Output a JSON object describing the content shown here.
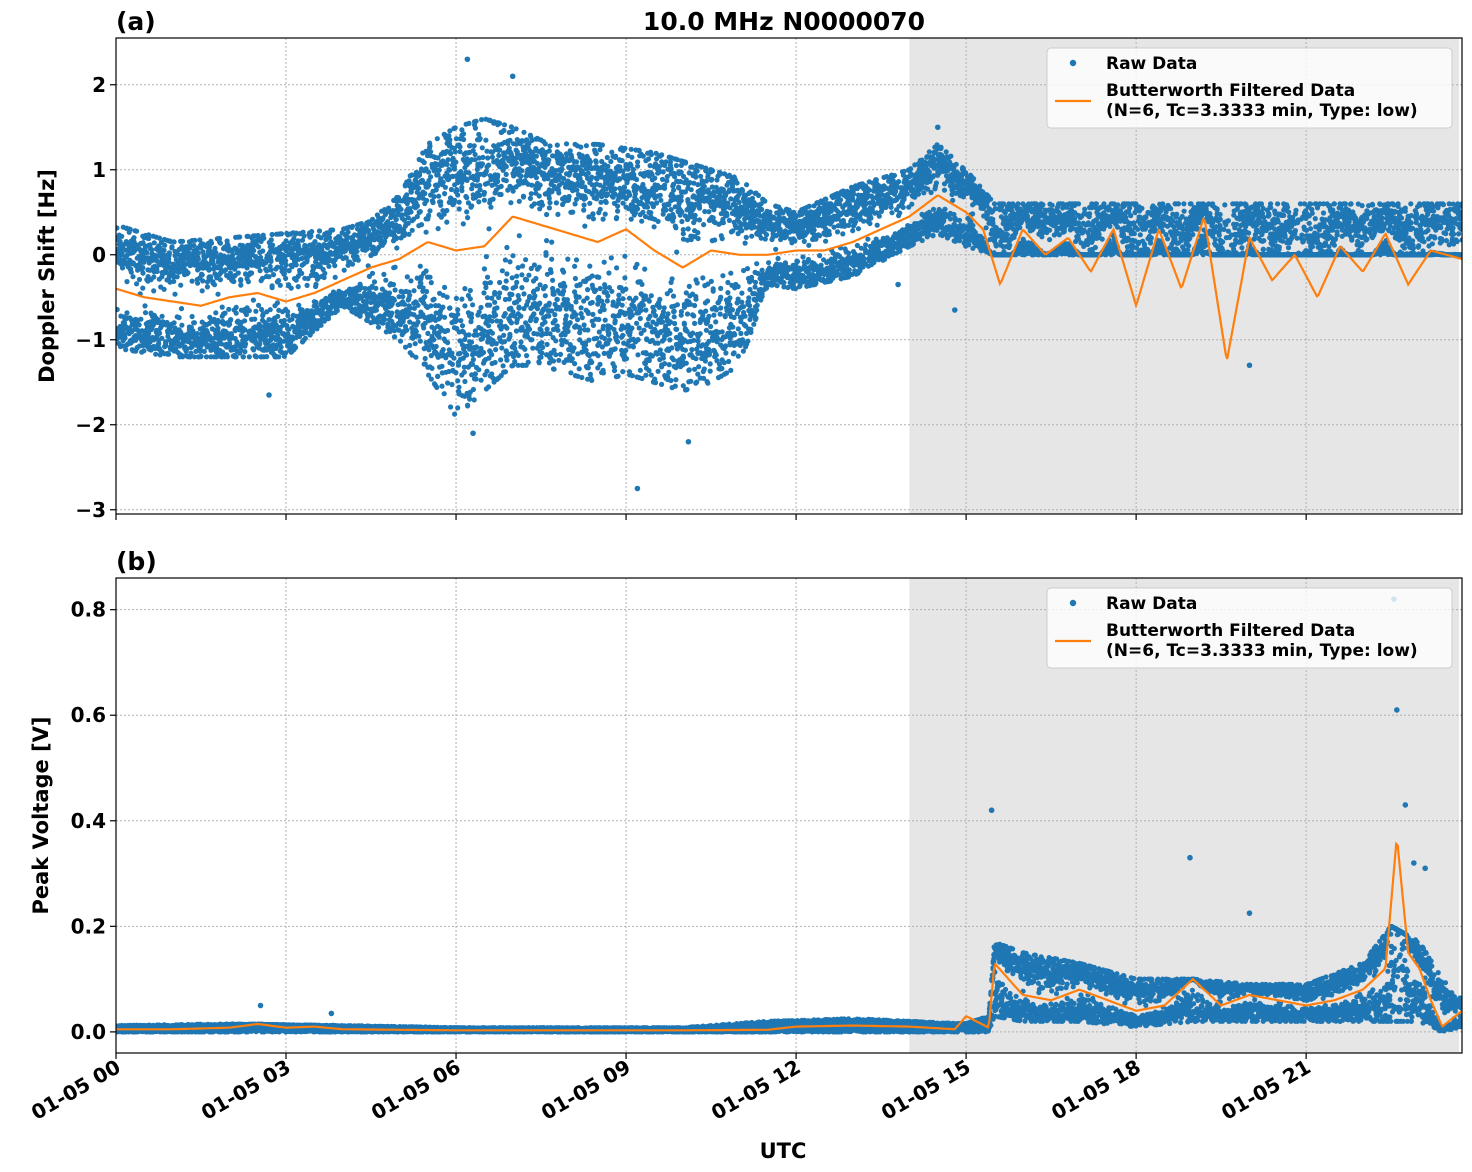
{
  "title": "10.0 MHz N0000070",
  "colors": {
    "raw": "#1f77b4",
    "filtered": "#ff7f0e",
    "shade": "#e6e6e6"
  },
  "chart_data": [
    {
      "type": "scatter",
      "panel_label": "(a)",
      "ylabel": "Doppler Shift [Hz]",
      "xlabel": "",
      "x_unit": "hours UTC on 01-05",
      "xlim": [
        0,
        23.75
      ],
      "ylim": [
        -3.05,
        2.55
      ],
      "yticks": [
        2,
        1,
        0,
        -1,
        -2,
        -3
      ],
      "ytick_labels": [
        "2",
        "1",
        "0",
        "−1",
        "−2",
        "−3"
      ],
      "grid": true,
      "shaded_interval": [
        14.0,
        23.7
      ],
      "legend": {
        "placement": "top-right",
        "raw_label": "Raw Data",
        "filtered_label_1": "Butterworth Filtered Data",
        "filtered_label_2": "(N=6, Tc=3.3333 min, Type: low)"
      },
      "series": [
        {
          "name": "Butterworth Filtered Data",
          "kind": "line",
          "x": [
            0,
            0.5,
            1,
            1.5,
            2,
            2.5,
            3,
            3.5,
            4,
            4.5,
            5,
            5.5,
            6,
            6.5,
            7,
            7.5,
            8,
            8.5,
            9,
            9.5,
            10,
            10.5,
            11,
            11.5,
            12,
            12.5,
            13,
            13.5,
            14,
            14.5,
            15,
            15.3,
            15.6,
            16,
            16.4,
            16.8,
            17.2,
            17.6,
            18,
            18.4,
            18.8,
            19.2,
            19.6,
            20,
            20.4,
            20.8,
            21.2,
            21.6,
            22,
            22.4,
            22.8,
            23.2,
            23.75
          ],
          "y": [
            -0.4,
            -0.5,
            -0.55,
            -0.6,
            -0.5,
            -0.45,
            -0.55,
            -0.45,
            -0.3,
            -0.15,
            -0.05,
            0.15,
            0.05,
            0.1,
            0.45,
            0.35,
            0.25,
            0.15,
            0.3,
            0.05,
            -0.15,
            0.05,
            0.0,
            0.0,
            0.05,
            0.05,
            0.15,
            0.3,
            0.45,
            0.7,
            0.5,
            0.3,
            -0.35,
            0.3,
            0.0,
            0.2,
            -0.2,
            0.3,
            -0.6,
            0.3,
            -0.4,
            0.45,
            -1.25,
            0.2,
            -0.3,
            0.0,
            -0.5,
            0.1,
            -0.2,
            0.25,
            -0.35,
            0.05,
            -0.05
          ]
        },
        {
          "name": "Raw Data",
          "kind": "scatter",
          "band_x": [
            0,
            1,
            2,
            3,
            4,
            4.5,
            5,
            5.5,
            6,
            6.5,
            7,
            7.5,
            8,
            8.5,
            9,
            9.5,
            10,
            10.5,
            11,
            11.5,
            12,
            13,
            14,
            14.5,
            15,
            15.5
          ],
          "band_low": [
            -1.1,
            -1.2,
            -1.2,
            -1.2,
            -0.6,
            -0.8,
            -1.0,
            -1.4,
            -1.9,
            -1.6,
            -1.3,
            -1.3,
            -1.4,
            -1.5,
            -1.4,
            -1.5,
            -1.6,
            -1.5,
            -1.3,
            -0.35,
            -0.4,
            -0.25,
            0.1,
            0.25,
            0.1,
            0.0
          ],
          "band_high": [
            0.35,
            0.15,
            0.2,
            0.25,
            0.3,
            0.4,
            0.7,
            1.3,
            1.5,
            1.6,
            1.5,
            1.35,
            1.3,
            1.3,
            1.25,
            1.2,
            1.1,
            1.0,
            0.9,
            0.6,
            0.5,
            0.8,
            1.0,
            1.3,
            1.0,
            0.6
          ],
          "notable_points": [
            [
              6.2,
              2.3
            ],
            [
              6.3,
              -2.1
            ],
            [
              9.2,
              -2.75
            ],
            [
              10.1,
              -2.2
            ],
            [
              7.0,
              2.1
            ],
            [
              2.7,
              -1.65
            ],
            [
              13.8,
              -0.35
            ],
            [
              14.5,
              1.5
            ],
            [
              14.8,
              -0.65
            ],
            [
              20.0,
              -1.3
            ]
          ]
        }
      ]
    },
    {
      "type": "scatter",
      "panel_label": "(b)",
      "ylabel": "Peak Voltage [V]",
      "xlabel": "UTC",
      "x_unit": "hours UTC on 01-05",
      "xlim": [
        0,
        23.75
      ],
      "ylim": [
        -0.04,
        0.86
      ],
      "yticks": [
        0.8,
        0.6,
        0.4,
        0.2,
        0.0
      ],
      "ytick_labels": [
        "0.8",
        "0.6",
        "0.4",
        "0.2",
        "0.0"
      ],
      "xticks": [
        0,
        3,
        6,
        9,
        12,
        15,
        18,
        21
      ],
      "xtick_labels": [
        "01-05 00",
        "01-05 03",
        "01-05 06",
        "01-05 09",
        "01-05 12",
        "01-05 15",
        "01-05 18",
        "01-05 21"
      ],
      "grid": true,
      "shaded_interval": [
        14.0,
        23.7
      ],
      "legend": {
        "placement": "top-right",
        "raw_label": "Raw Data",
        "filtered_label_1": "Butterworth Filtered Data",
        "filtered_label_2": "(N=6, Tc=3.3333 min, Type: low)"
      },
      "series": [
        {
          "name": "Butterworth Filtered Data",
          "kind": "line",
          "x": [
            0,
            1,
            2,
            2.5,
            3,
            3.5,
            4,
            5,
            6,
            8,
            10,
            11.5,
            12,
            13,
            14,
            14.8,
            15.0,
            15.4,
            15.5,
            16,
            16.5,
            17,
            17.5,
            18,
            18.5,
            19,
            19.5,
            20,
            20.5,
            21,
            21.5,
            22,
            22.4,
            22.6,
            22.8,
            23,
            23.2,
            23.4,
            23.75
          ],
          "y": [
            0.005,
            0.005,
            0.008,
            0.015,
            0.008,
            0.01,
            0.005,
            0.004,
            0.003,
            0.003,
            0.003,
            0.004,
            0.01,
            0.012,
            0.01,
            0.005,
            0.03,
            0.008,
            0.13,
            0.07,
            0.06,
            0.08,
            0.06,
            0.04,
            0.05,
            0.1,
            0.05,
            0.07,
            0.06,
            0.05,
            0.06,
            0.08,
            0.12,
            0.37,
            0.15,
            0.12,
            0.06,
            0.01,
            0.04
          ]
        },
        {
          "name": "Raw Data",
          "kind": "scatter",
          "band_x": [
            0,
            2,
            4,
            6,
            10,
            11.5,
            13,
            14,
            15,
            15.4,
            15.5,
            16,
            17,
            18,
            19,
            20,
            21,
            22,
            22.5,
            23,
            23.4,
            23.75
          ],
          "band_low": [
            0.0,
            0.0,
            0.0,
            0.0,
            0.0,
            0.0,
            0.0,
            0.0,
            0.0,
            0.0,
            0.03,
            0.02,
            0.02,
            0.01,
            0.02,
            0.02,
            0.02,
            0.02,
            0.02,
            0.02,
            0.0,
            0.01
          ],
          "band_high": [
            0.012,
            0.015,
            0.012,
            0.008,
            0.008,
            0.02,
            0.025,
            0.02,
            0.015,
            0.03,
            0.17,
            0.15,
            0.13,
            0.1,
            0.1,
            0.09,
            0.09,
            0.13,
            0.2,
            0.17,
            0.1,
            0.06
          ],
          "notable_points": [
            [
              2.55,
              0.05
            ],
            [
              3.8,
              0.035
            ],
            [
              15.45,
              0.42
            ],
            [
              18.95,
              0.33
            ],
            [
              20.0,
              0.225
            ],
            [
              22.55,
              0.82
            ],
            [
              22.6,
              0.61
            ],
            [
              22.75,
              0.43
            ],
            [
              22.9,
              0.32
            ],
            [
              23.1,
              0.31
            ]
          ]
        }
      ]
    }
  ]
}
